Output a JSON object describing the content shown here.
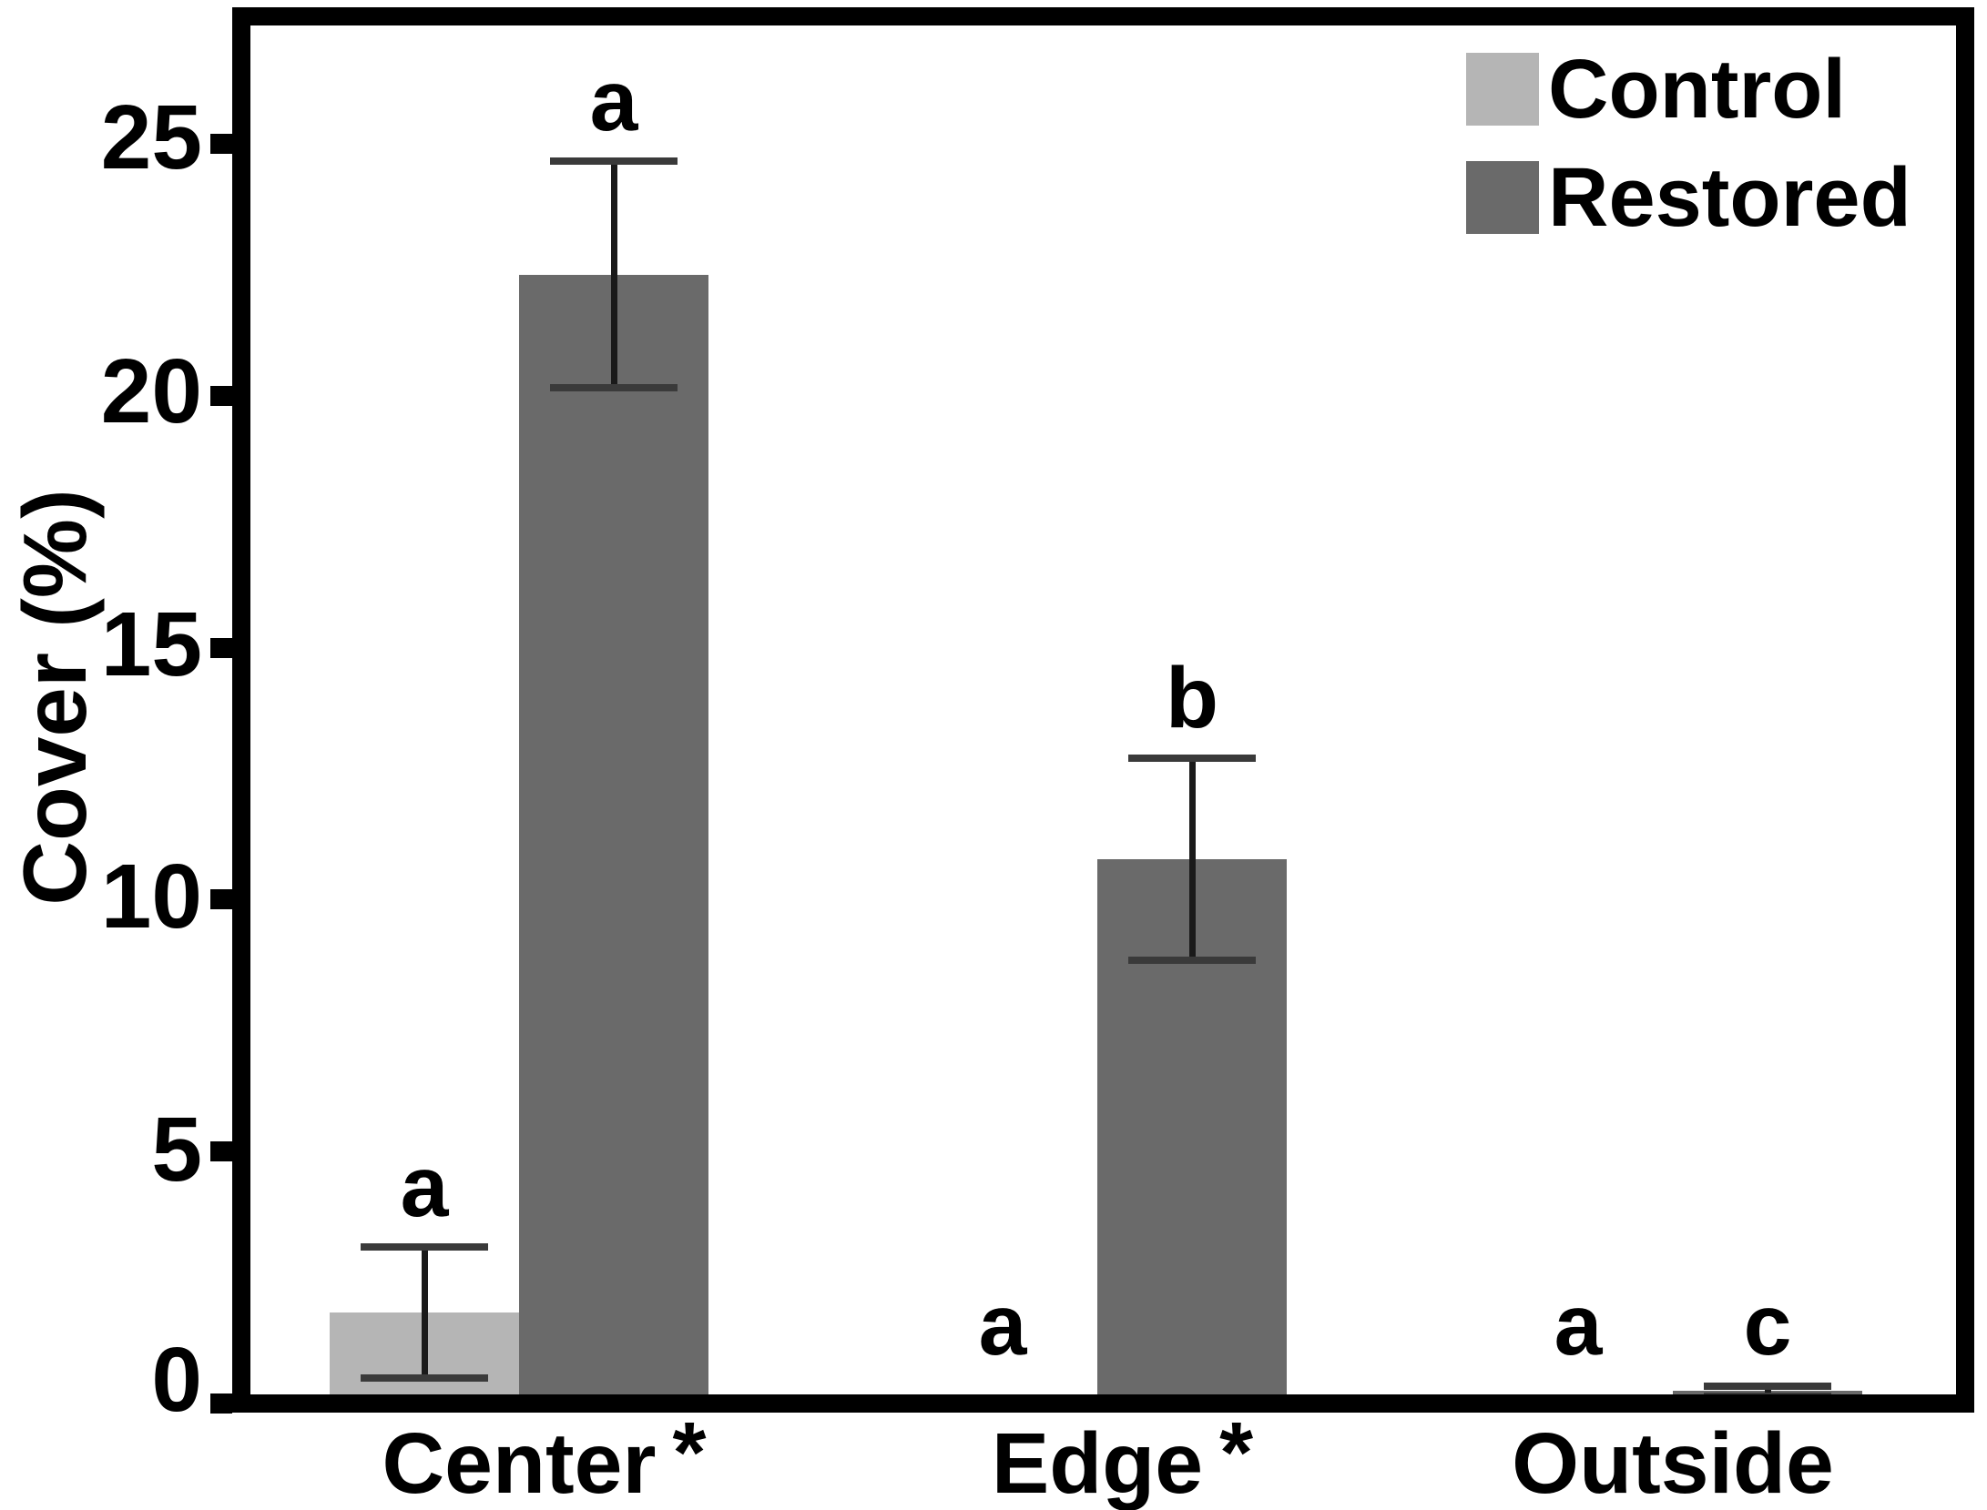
{
  "figure": {
    "kind": "grouped bar chart with error bars and significance letters"
  },
  "y_axis": {
    "label": "Cover (%)",
    "ticks": [
      {
        "label": "25",
        "value": 25,
        "label_dy": -7
      },
      {
        "label": "20",
        "value": 20,
        "label_dy": -5
      },
      {
        "label": "15",
        "value": 15,
        "label_dy": -4
      },
      {
        "label": "10",
        "value": 10,
        "label_dy": -3
      },
      {
        "label": "5",
        "value": 5,
        "label_dy": -2
      },
      {
        "label": "0",
        "value": 0,
        "label_dy": -26
      }
    ]
  },
  "legend": {
    "items": [
      {
        "name": "Control",
        "color": "#b5b5b5"
      },
      {
        "name": "Restored",
        "color": "#6a6a6a"
      }
    ]
  },
  "colors": {
    "axis": "#000000",
    "error_line": "#1a1a1a",
    "error_cap": "#3a3a3a",
    "control_fill": "#b5b5b5",
    "restored_fill": "#6a6a6a",
    "text": "#000000",
    "background": "#ffffff"
  },
  "chart_data": {
    "type": "bar",
    "title": "",
    "xlabel": "",
    "ylabel": "Cover (%)",
    "ylim": [
      0,
      27.3
    ],
    "grid": false,
    "legend_position": "top-right",
    "categories": [
      "Center *",
      "Edge *",
      "Outside"
    ],
    "category_words": [
      "Center",
      "Edge",
      "Outside"
    ],
    "category_asterisk": [
      true,
      true,
      false
    ],
    "series": [
      {
        "name": "Control",
        "color": "#b5b5b5",
        "values": [
          1.8,
          0,
          0
        ],
        "errors": [
          1.3,
          null,
          null
        ],
        "sig_letters": [
          "a",
          "a",
          "a"
        ]
      },
      {
        "name": "Restored",
        "color": "#6a6a6a",
        "values": [
          22.4,
          10.8,
          0.25
        ],
        "errors": [
          2.25,
          2.0,
          0.1
        ],
        "sig_letters": [
          "a",
          "b",
          "c"
        ]
      }
    ]
  }
}
